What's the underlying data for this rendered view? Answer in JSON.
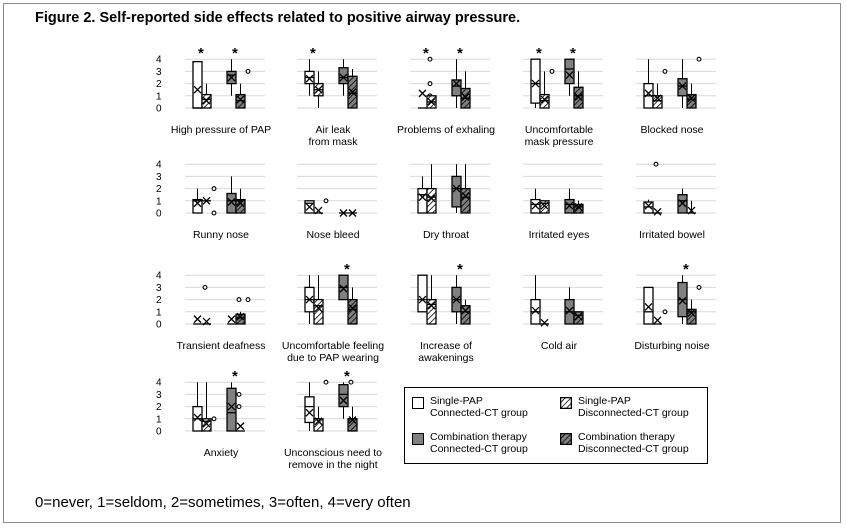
{
  "figure": {
    "title": "Figure 2. Self-reported side effects related to positive airway pressure.",
    "footnote": "0=never, 1=seldom, 2=sometimes, 3=often, 4=very often"
  },
  "legend": {
    "items": [
      {
        "key": "single_connected",
        "line1": "Single-PAP",
        "line2": "Connected-CT group",
        "fill": "#ffffff",
        "hatched": false
      },
      {
        "key": "single_disconnected",
        "line1": "Single-PAP",
        "line2": "Disconnected-CT group",
        "fill": "#ffffff",
        "hatched": true
      },
      {
        "key": "combo_connected",
        "line1": "Combination therapy",
        "line2": "Connected-CT group",
        "fill": "#808080",
        "hatched": false
      },
      {
        "key": "combo_disconnected",
        "line1": "Combination therapy",
        "line2": "Disconnected-CT group",
        "fill": "#808080",
        "hatched": true
      }
    ]
  },
  "colors": {
    "white_fill": "#ffffff",
    "gray_fill": "#808080",
    "stroke": "#000000",
    "gridline": "#d9d9d9"
  },
  "chart_data": {
    "type": "box",
    "ylim": [
      0,
      4
    ],
    "yticks": [
      "0",
      "1",
      "2",
      "3",
      "4"
    ],
    "series": [
      "Single-PAP Connected-CT group",
      "Single-PAP Disconnected-CT group",
      "Combination therapy Connected-CT group",
      "Combination therapy Disconnected-CT group"
    ],
    "panels": [
      {
        "label_lines": [
          "High pressure of PAP"
        ],
        "stars": [
          true,
          true
        ],
        "yaxis": true,
        "boxes": [
          {
            "q1": 0,
            "median": 0,
            "q3": 3.8,
            "min": 0,
            "max": 3.8,
            "mean": 1.5,
            "outliers": []
          },
          {
            "q1": 0,
            "median": 0.7,
            "q3": 1.1,
            "min": 0,
            "max": 2,
            "mean": 0.6,
            "outliers": []
          },
          {
            "q1": 2,
            "median": 2.7,
            "q3": 3,
            "min": 1,
            "max": 4,
            "mean": 2.5,
            "outliers": []
          },
          {
            "q1": 0,
            "median": 0.6,
            "q3": 1.1,
            "min": 0,
            "max": 2,
            "mean": 0.7,
            "outliers": [
              3
            ]
          }
        ]
      },
      {
        "label_lines": [
          "Air leak",
          "from mask"
        ],
        "stars": [
          true,
          false
        ],
        "yaxis": false,
        "boxes": [
          {
            "q1": 2,
            "median": 2.5,
            "q3": 3,
            "min": 1,
            "max": 4,
            "mean": 2.4,
            "outliers": []
          },
          {
            "q1": 1,
            "median": 1.5,
            "q3": 2,
            "min": 0,
            "max": 3,
            "mean": 1.5,
            "outliers": []
          },
          {
            "q1": 2,
            "median": 2.5,
            "q3": 3.3,
            "min": 1,
            "max": 4,
            "mean": 2.5,
            "outliers": []
          },
          {
            "q1": 0,
            "median": 1.2,
            "q3": 2.6,
            "min": 0,
            "max": 3.2,
            "mean": 1.3,
            "outliers": []
          }
        ]
      },
      {
        "label_lines": [
          "Problems of exhaling"
        ],
        "stars": [
          true,
          true
        ],
        "yaxis": false,
        "boxes": [
          {
            "q1": 0,
            "median": 0,
            "q3": 0,
            "min": 0,
            "max": 0,
            "mean": 1.2,
            "outliers": [
              4,
              2,
              1
            ]
          },
          {
            "q1": 0,
            "median": 0.5,
            "q3": 1,
            "min": 0,
            "max": 1,
            "mean": 0.5,
            "outliers": []
          },
          {
            "q1": 1,
            "median": 1.8,
            "q3": 2.3,
            "min": 0,
            "max": 4,
            "mean": 2,
            "outliers": []
          },
          {
            "q1": 0,
            "median": 0.8,
            "q3": 1.6,
            "min": 0,
            "max": 3,
            "mean": 0.9,
            "outliers": []
          }
        ]
      },
      {
        "label_lines": [
          "Uncomfortable",
          "mask pressure"
        ],
        "stars": [
          true,
          true
        ],
        "yaxis": false,
        "boxes": [
          {
            "q1": 0.4,
            "median": 2,
            "q3": 4,
            "min": 0,
            "max": 4,
            "mean": 2,
            "outliers": []
          },
          {
            "q1": 0,
            "median": 0.6,
            "q3": 1.1,
            "min": 0,
            "max": 3,
            "mean": 0.7,
            "outliers": [
              3
            ]
          },
          {
            "q1": 2,
            "median": 3.2,
            "q3": 4,
            "min": 1,
            "max": 4,
            "mean": 2.7,
            "outliers": []
          },
          {
            "q1": 0,
            "median": 1,
            "q3": 1.7,
            "min": 0,
            "max": 3,
            "mean": 0.9,
            "outliers": []
          }
        ]
      },
      {
        "label_lines": [
          "Blocked nose"
        ],
        "stars": [
          false,
          false
        ],
        "yaxis": false,
        "boxes": [
          {
            "q1": 0,
            "median": 1,
            "q3": 2,
            "min": 0,
            "max": 4,
            "mean": 1.2,
            "outliers": []
          },
          {
            "q1": 0,
            "median": 0.6,
            "q3": 1,
            "min": 0,
            "max": 2,
            "mean": 0.8,
            "outliers": [
              3
            ]
          },
          {
            "q1": 1,
            "median": 1.8,
            "q3": 2.4,
            "min": 0,
            "max": 4,
            "mean": 1.8,
            "outliers": []
          },
          {
            "q1": 0,
            "median": 0.7,
            "q3": 1.1,
            "min": 0,
            "max": 2,
            "mean": 0.8,
            "outliers": [
              4
            ]
          }
        ]
      },
      {
        "label_lines": [
          "Runny nose"
        ],
        "stars": [
          false,
          false
        ],
        "yaxis": true,
        "boxes": [
          {
            "q1": 0,
            "median": 1,
            "q3": 1.1,
            "min": 0,
            "max": 2,
            "mean": 0.8,
            "outliers": []
          },
          {
            "q1": 1,
            "median": 1,
            "q3": 1,
            "min": 1,
            "max": 1,
            "mean": 1,
            "outliers": [
              2,
              0
            ]
          },
          {
            "q1": 0,
            "median": 1,
            "q3": 1.6,
            "min": 0,
            "max": 3,
            "mean": 0.9,
            "outliers": []
          },
          {
            "q1": 0,
            "median": 1,
            "q3": 1.1,
            "min": 0,
            "max": 2,
            "mean": 0.8,
            "outliers": []
          }
        ]
      },
      {
        "label_lines": [
          "Nose bleed"
        ],
        "stars": [
          false,
          false
        ],
        "yaxis": false,
        "boxes": [
          {
            "q1": 0,
            "median": 0.8,
            "q3": 1,
            "min": 0,
            "max": 1,
            "mean": 0.5,
            "outliers": []
          },
          {
            "q1": 0,
            "median": 0,
            "q3": 0,
            "min": 0,
            "max": 0,
            "mean": 0.2,
            "outliers": [
              1
            ]
          },
          {
            "q1": 0,
            "median": 0,
            "q3": 0,
            "min": 0,
            "max": 0,
            "mean": 0,
            "outliers": []
          },
          {
            "q1": 0,
            "median": 0,
            "q3": 0,
            "min": 0,
            "max": 0,
            "mean": 0,
            "outliers": []
          }
        ]
      },
      {
        "label_lines": [
          "Dry throat"
        ],
        "stars": [
          false,
          false
        ],
        "yaxis": false,
        "boxes": [
          {
            "q1": 0,
            "median": 1.5,
            "q3": 2,
            "min": 0,
            "max": 3,
            "mean": 1.3,
            "outliers": []
          },
          {
            "q1": 0,
            "median": 1.3,
            "q3": 2,
            "min": 0,
            "max": 4,
            "mean": 1.2,
            "outliers": []
          },
          {
            "q1": 0.5,
            "median": 2,
            "q3": 3,
            "min": 0,
            "max": 4,
            "mean": 2,
            "outliers": []
          },
          {
            "q1": 0,
            "median": 1.3,
            "q3": 2,
            "min": 0,
            "max": 4,
            "mean": 1.4,
            "outliers": []
          }
        ]
      },
      {
        "label_lines": [
          "Irritated eyes"
        ],
        "stars": [
          false,
          false
        ],
        "yaxis": false,
        "boxes": [
          {
            "q1": 0,
            "median": 0.7,
            "q3": 1.1,
            "min": 0,
            "max": 2,
            "mean": 0.6,
            "outliers": []
          },
          {
            "q1": 0,
            "median": 0.8,
            "q3": 1,
            "min": 0,
            "max": 1,
            "mean": 0.6,
            "outliers": []
          },
          {
            "q1": 0,
            "median": 0.7,
            "q3": 1.1,
            "min": 0,
            "max": 2,
            "mean": 0.6,
            "outliers": []
          },
          {
            "q1": 0,
            "median": 0.5,
            "q3": 0.7,
            "min": 0,
            "max": 1,
            "mean": 0.5,
            "outliers": []
          }
        ]
      },
      {
        "label_lines": [
          "Irritated bowel"
        ],
        "stars": [
          false,
          false
        ],
        "yaxis": false,
        "boxes": [
          {
            "q1": 0,
            "median": 0.5,
            "q3": 0.9,
            "min": 0,
            "max": 1.1,
            "mean": 0.6,
            "outliers": [
              4
            ]
          },
          {
            "q1": 0,
            "median": 0,
            "q3": 0,
            "min": 0,
            "max": 0,
            "mean": 0.1,
            "outliers": []
          },
          {
            "q1": 0,
            "median": 1,
            "q3": 1.5,
            "min": 0,
            "max": 2,
            "mean": 0.8,
            "outliers": []
          },
          {
            "q1": 0,
            "median": 0,
            "q3": 0,
            "min": 0,
            "max": 1,
            "mean": 0.2,
            "outliers": []
          }
        ]
      },
      {
        "label_lines": [
          "Transient deafness"
        ],
        "stars": [
          false,
          false
        ],
        "yaxis": true,
        "boxes": [
          {
            "q1": 0,
            "median": 0,
            "q3": 0,
            "min": 0,
            "max": 0,
            "mean": 0.4,
            "outliers": [
              3
            ]
          },
          {
            "q1": 0,
            "median": 0,
            "q3": 0,
            "min": 0,
            "max": 0,
            "mean": 0.2,
            "outliers": []
          },
          {
            "q1": 0,
            "median": 0,
            "q3": 0,
            "min": 0,
            "max": 0,
            "mean": 0.4,
            "outliers": [
              2
            ]
          },
          {
            "q1": 0,
            "median": 0.5,
            "q3": 0.8,
            "min": 0,
            "max": 1,
            "mean": 0.6,
            "outliers": [
              2
            ]
          }
        ]
      },
      {
        "label_lines": [
          "Uncomfortable feeling",
          "due to PAP wearing"
        ],
        "stars": [
          false,
          true
        ],
        "yaxis": false,
        "boxes": [
          {
            "q1": 1,
            "median": 2,
            "q3": 3,
            "min": 0,
            "max": 4,
            "mean": 2,
            "outliers": []
          },
          {
            "q1": 0,
            "median": 1.5,
            "q3": 2,
            "min": 0,
            "max": 4,
            "mean": 1.3,
            "outliers": []
          },
          {
            "q1": 2,
            "median": 3,
            "q3": 4,
            "min": 2,
            "max": 4,
            "mean": 2.9,
            "outliers": []
          },
          {
            "q1": 0,
            "median": 1.2,
            "q3": 2,
            "min": 0,
            "max": 3,
            "mean": 1.3,
            "outliers": []
          }
        ]
      },
      {
        "label_lines": [
          "Increase of",
          "awakenings"
        ],
        "stars": [
          false,
          true
        ],
        "yaxis": false,
        "boxes": [
          {
            "q1": 1,
            "median": 2,
            "q3": 4,
            "min": 1,
            "max": 4,
            "mean": 2,
            "outliers": []
          },
          {
            "q1": 0,
            "median": 1.6,
            "q3": 2,
            "min": 0,
            "max": 4,
            "mean": 1.5,
            "outliers": []
          },
          {
            "q1": 1,
            "median": 2,
            "q3": 3,
            "min": 0,
            "max": 4,
            "mean": 2,
            "outliers": []
          },
          {
            "q1": 0,
            "median": 1,
            "q3": 1.5,
            "min": 0,
            "max": 2,
            "mean": 1.1,
            "outliers": []
          }
        ]
      },
      {
        "label_lines": [
          "Cold air"
        ],
        "stars": [
          false,
          false
        ],
        "yaxis": false,
        "boxes": [
          {
            "q1": 0,
            "median": 1,
            "q3": 2,
            "min": 0,
            "max": 4,
            "mean": 1.1,
            "outliers": []
          },
          {
            "q1": 0,
            "median": 0,
            "q3": 0,
            "min": 0,
            "max": 0,
            "mean": 0.1,
            "outliers": []
          },
          {
            "q1": 0,
            "median": 1,
            "q3": 2,
            "min": 0,
            "max": 3,
            "mean": 1.1,
            "outliers": []
          },
          {
            "q1": 0,
            "median": 0.7,
            "q3": 1,
            "min": 0,
            "max": 1,
            "mean": 0.6,
            "outliers": []
          }
        ]
      },
      {
        "label_lines": [
          "Disturbing noise"
        ],
        "stars": [
          false,
          true
        ],
        "yaxis": false,
        "boxes": [
          {
            "q1": 0,
            "median": 1,
            "q3": 3,
            "min": 0,
            "max": 3,
            "mean": 1.4,
            "outliers": []
          },
          {
            "q1": 0,
            "median": 0,
            "q3": 0,
            "min": 0,
            "max": 0,
            "mean": 0.3,
            "outliers": [
              1
            ]
          },
          {
            "q1": 0.6,
            "median": 2,
            "q3": 3.4,
            "min": 0,
            "max": 4,
            "mean": 1.9,
            "outliers": []
          },
          {
            "q1": 0,
            "median": 1,
            "q3": 1.2,
            "min": 0,
            "max": 2,
            "mean": 0.9,
            "outliers": [
              3
            ]
          }
        ]
      },
      {
        "label_lines": [
          "Anxiety"
        ],
        "stars": [
          false,
          true
        ],
        "yaxis": true,
        "boxes": [
          {
            "q1": 0,
            "median": 1,
            "q3": 2,
            "min": 0,
            "max": 4,
            "mean": 1.1,
            "outliers": []
          },
          {
            "q1": 0,
            "median": 0.8,
            "q3": 1,
            "min": 0,
            "max": 4,
            "mean": 0.6,
            "outliers": [
              1
            ]
          },
          {
            "q1": 0,
            "median": 1.5,
            "q3": 3.5,
            "min": 0,
            "max": 4,
            "mean": 2,
            "outliers": [
              3,
              2
            ]
          },
          {
            "q1": 0,
            "median": 0,
            "q3": 0,
            "min": 0,
            "max": 0,
            "mean": 0.4,
            "outliers": []
          }
        ]
      },
      {
        "label_lines": [
          "Unconscious need to",
          "remove in the night"
        ],
        "stars": [
          false,
          true
        ],
        "yaxis": false,
        "boxes": [
          {
            "q1": 0.7,
            "median": 2,
            "q3": 2.8,
            "min": 0,
            "max": 4,
            "mean": 1.5,
            "outliers": []
          },
          {
            "q1": 0,
            "median": 1,
            "q3": 1,
            "min": 0,
            "max": 2,
            "mean": 0.8,
            "outliers": [
              4
            ]
          },
          {
            "q1": 2,
            "median": 3,
            "q3": 3.8,
            "min": 1,
            "max": 4,
            "mean": 2.5,
            "outliers": [
              4
            ]
          },
          {
            "q1": 0,
            "median": 1,
            "q3": 1,
            "min": 0,
            "max": 2,
            "mean": 0.9,
            "outliers": []
          }
        ]
      }
    ]
  }
}
